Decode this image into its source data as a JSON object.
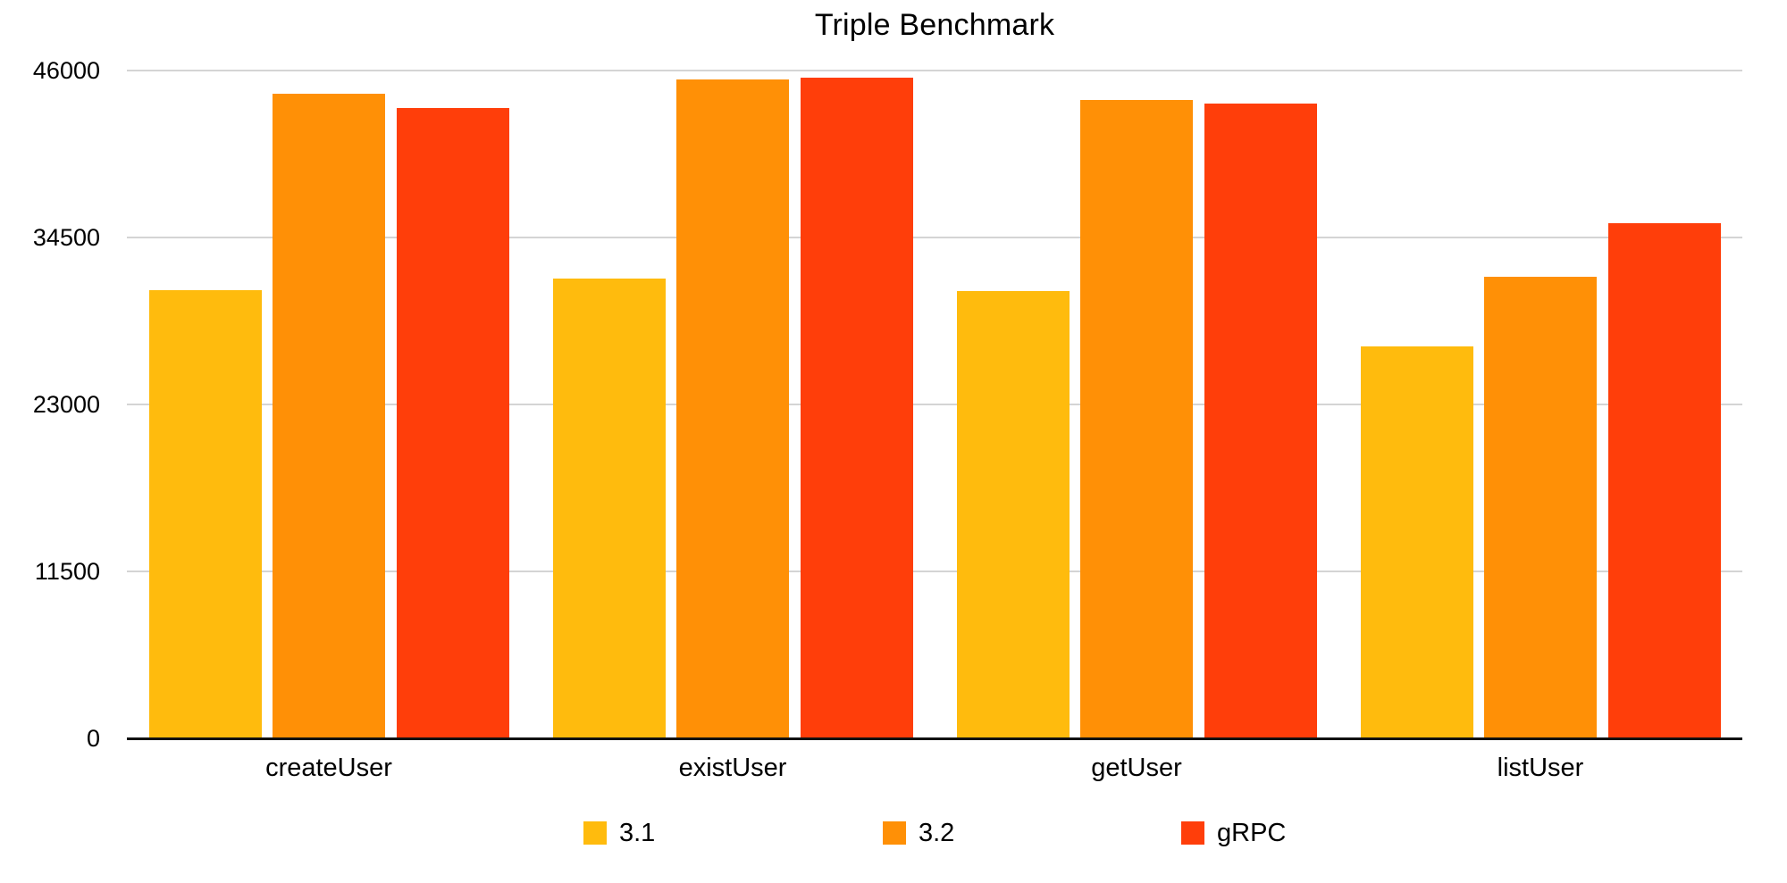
{
  "title": "Triple Benchmark",
  "chart_data": {
    "type": "bar",
    "title": "Triple Benchmark",
    "categories": [
      "createUser",
      "existUser",
      "getUser",
      "listUser"
    ],
    "series": [
      {
        "name": "3.1",
        "color": "#FFBB0D",
        "values": [
          30900,
          31700,
          30800,
          27000
        ]
      },
      {
        "name": "3.2",
        "color": "#FF9006",
        "values": [
          44400,
          45400,
          44000,
          31800
        ]
      },
      {
        "name": "gRPC",
        "color": "#FF3E0A",
        "values": [
          43400,
          45500,
          43700,
          35500
        ]
      }
    ],
    "xlabel": "",
    "ylabel": "",
    "ylim": [
      0,
      46000
    ],
    "yticks": [
      0,
      11500,
      23000,
      34500,
      46000
    ],
    "grid": true,
    "legend_position": "bottom"
  },
  "colors": {
    "background": "#ffffff",
    "gridline": "#d4d4d4",
    "zero_axis": "#111111",
    "text": "#000000"
  }
}
